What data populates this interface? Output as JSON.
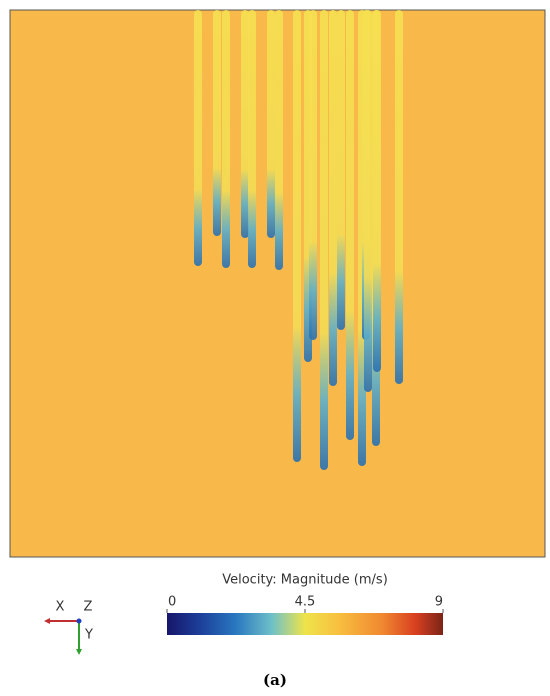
{
  "colorbar": {
    "title": "Velocity: Magnitude (m/s)",
    "lim": [
      0,
      9
    ],
    "ticks": [
      0,
      4.5,
      9
    ]
  },
  "axes_triad": {
    "x": "X",
    "z": "Z",
    "y": "Y"
  },
  "caption": "(a)"
}
